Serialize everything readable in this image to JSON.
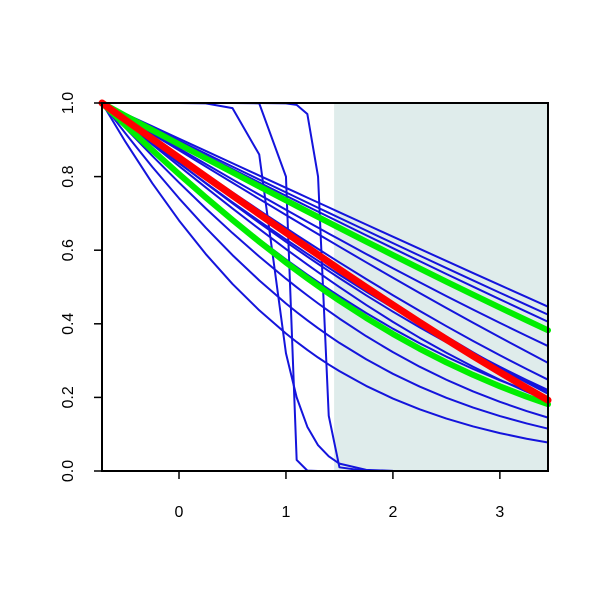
{
  "chart_data": {
    "type": "line",
    "title": "",
    "xlabel": "",
    "ylabel": "",
    "xlim": [
      -0.72,
      3.45
    ],
    "ylim": [
      0,
      1
    ],
    "x_ticks": [
      0,
      1,
      2,
      3
    ],
    "x_tick_labels": [
      "0",
      "1",
      "2",
      "3"
    ],
    "y_ticks": [
      0,
      0.2,
      0.4,
      0.6,
      0.8,
      1
    ],
    "y_tick_labels": [
      "0.0",
      "0.2",
      "0.4",
      "0.6",
      "0.8",
      "1.0"
    ],
    "grid": false,
    "legend": "none",
    "shaded_region": {
      "x_from": 1.45,
      "x_to": 3.45,
      "color": "#dfeceb"
    },
    "colors": {
      "blue": "#1414dc",
      "red": "#ff0000",
      "green": "#00ee00",
      "shade": "#dfeceb"
    },
    "x": [
      -0.72,
      -0.5,
      -0.25,
      0,
      0.25,
      0.5,
      0.75,
      1,
      1.1,
      1.2,
      1.3,
      1.4,
      1.5,
      1.75,
      2,
      2.25,
      2.5,
      2.75,
      3,
      3.25,
      3.45
    ],
    "series": [
      {
        "color": "blue",
        "width": 2,
        "values": [
          1,
          0.9474,
          0.8913,
          0.8364,
          0.7828,
          0.7303,
          0.6792,
          0.6293,
          0.6097,
          0.5903,
          0.5711,
          0.5521,
          0.5333,
          0.4875,
          0.4433,
          0.4007,
          0.3598,
          0.3206,
          0.2831,
          0.2473,
          0.22
        ]
      },
      {
        "color": "blue",
        "width": 2,
        "values": [
          1,
          0.9531,
          0.9015,
          0.85,
          0.7985,
          0.7474,
          0.6968,
          0.6469,
          0.6271,
          0.6074,
          0.5879,
          0.5685,
          0.5492,
          0.5017,
          0.4552,
          0.4098,
          0.3655,
          0.3225,
          0.2808,
          0.2404,
          0.21
        ]
      },
      {
        "color": "blue",
        "width": 2,
        "values": [
          1,
          0.96,
          0.9158,
          0.8715,
          0.8273,
          0.7832,
          0.7393,
          0.6957,
          0.6783,
          0.661,
          0.6438,
          0.6266,
          0.6095,
          0.5671,
          0.5252,
          0.4838,
          0.443,
          0.4029,
          0.3634,
          0.3246,
          0.2939
        ]
      },
      {
        "color": "blue",
        "width": 2,
        "values": [
          1,
          0.9614,
          0.9187,
          0.8763,
          0.8341,
          0.7923,
          0.7509,
          0.7099,
          0.6936,
          0.6774,
          0.6613,
          0.6452,
          0.6293,
          0.5898,
          0.551,
          0.5128,
          0.4753,
          0.4385,
          0.4025,
          0.3672,
          0.3395
        ]
      },
      {
        "color": "blue",
        "width": 2,
        "values": [
          1,
          0.9561,
          0.9063,
          0.8564,
          0.8067,
          0.7573,
          0.7084,
          0.6603,
          0.6412,
          0.6223,
          0.6036,
          0.5851,
          0.5667,
          0.5217,
          0.4777,
          0.435,
          0.3935,
          0.3533,
          0.3145,
          0.2771,
          0.2481
        ]
      },
      {
        "color": "blue",
        "width": 2,
        "values": [
          1,
          0.9497,
          0.8932,
          0.8371,
          0.7818,
          0.7275,
          0.6744,
          0.6228,
          0.6025,
          0.5825,
          0.5628,
          0.5433,
          0.5241,
          0.4775,
          0.4329,
          0.3904,
          0.35,
          0.3118,
          0.2758,
          0.242,
          0.2163
        ]
      },
      {
        "color": "blue",
        "width": 2,
        "values": [
          1,
          0.9552,
          0.904,
          0.8527,
          0.8014,
          0.7503,
          0.6995,
          0.6491,
          0.6291,
          0.6092,
          0.5894,
          0.5697,
          0.5501,
          0.5018,
          0.4543,
          0.4077,
          0.3621,
          0.3175,
          0.2741,
          0.2318,
          0.1991
        ]
      },
      {
        "color": "blue",
        "width": 2,
        "values": [
          1,
          0.9467,
          0.8874,
          0.8286,
          0.7706,
          0.7135,
          0.6577,
          0.6032,
          0.5819,
          0.5609,
          0.5402,
          0.5198,
          0.4998,
          0.4513,
          0.4053,
          0.3619,
          0.3212,
          0.2832,
          0.248,
          0.2155,
          0.1915
        ]
      },
      {
        "color": "blue",
        "width": 2,
        "values": [
          1,
          0.9386,
          0.8724,
          0.8082,
          0.7462,
          0.6866,
          0.6295,
          0.575,
          0.5541,
          0.5336,
          0.5136,
          0.494,
          0.4749,
          0.4293,
          0.3867,
          0.3472,
          0.3107,
          0.2772,
          0.2465,
          0.2185,
          0.198
        ]
      },
      {
        "color": "blue",
        "width": 2,
        "values": [
          1,
          0.9318,
          0.8565,
          0.7837,
          0.7136,
          0.6466,
          0.5828,
          0.5225,
          0.4995,
          0.4772,
          0.4555,
          0.4345,
          0.4141,
          0.3664,
          0.3229,
          0.2834,
          0.2479,
          0.2162,
          0.1879,
          0.163,
          0.145
        ]
      },
      {
        "color": "blue",
        "width": 2,
        "values": [
          1,
          0.9648,
          0.9261,
          0.8873,
          0.8487,
          0.8101,
          0.7718,
          0.7337,
          0.7186,
          0.7034,
          0.6884,
          0.6733,
          0.6584,
          0.6212,
          0.5844,
          0.548,
          0.512,
          0.4764,
          0.4414,
          0.4068,
          0.3795
        ]
      },
      {
        "color": "blue",
        "width": 2,
        "values": [
          1,
          0.968,
          0.9327,
          0.8974,
          0.8622,
          0.8271,
          0.792,
          0.7571,
          0.7432,
          0.7293,
          0.7154,
          0.7016,
          0.6878,
          0.6535,
          0.6192,
          0.5852,
          0.5514,
          0.5178,
          0.4844,
          0.4513,
          0.425
        ]
      },
      {
        "color": "blue",
        "width": 2,
        "values": [
          1,
          0.97,
          0.9366,
          0.9031,
          0.8697,
          0.8363,
          0.8029,
          0.7696,
          0.7562,
          0.7429,
          0.7296,
          0.7163,
          0.703,
          0.6698,
          0.6367,
          0.6037,
          0.5708,
          0.5379,
          0.5052,
          0.4726,
          0.4465
        ]
      },
      {
        "color": "blue",
        "width": 2,
        "values": [
          1,
          0.9666,
          0.9299,
          0.8932,
          0.8567,
          0.8203,
          0.784,
          0.7479,
          0.7335,
          0.7191,
          0.7048,
          0.6905,
          0.6762,
          0.6407,
          0.6054,
          0.5703,
          0.5354,
          0.5009,
          0.4666,
          0.4326,
          0.4056
        ]
      },
      {
        "color": "blue",
        "width": 2,
        "values": [
          1,
          0.917,
          0.8265,
          0.7411,
          0.6611,
          0.5867,
          0.5181,
          0.4552,
          0.4318,
          0.4094,
          0.388,
          0.3676,
          0.3481,
          0.3036,
          0.2641,
          0.2294,
          0.1989,
          0.1724,
          0.1493,
          0.1292,
          0.115
        ]
      },
      {
        "color": "blue",
        "width": 2,
        "values": [
          1,
          0.8941,
          0.7821,
          0.6808,
          0.5896,
          0.5084,
          0.4367,
          0.3737,
          0.3506,
          0.3289,
          0.3084,
          0.2893,
          0.2713,
          0.2312,
          0.1969,
          0.1675,
          0.1424,
          0.1211,
          0.103,
          0.0877,
          0.0775
        ]
      },
      {
        "color": "blue",
        "width": 2,
        "values": [
          1,
          1,
          1,
          0.9999,
          0.9991,
          0.986,
          0.86,
          0.32,
          0.2,
          0.12,
          0.07,
          0.04,
          0.02,
          0.003,
          0.0005,
          0.0001,
          0,
          0,
          0,
          0,
          0
        ]
      },
      {
        "color": "blue",
        "width": 2,
        "values": [
          1,
          1,
          1,
          1,
          1,
          1,
          0.999,
          0.8,
          0.03,
          0.001,
          0,
          0,
          0,
          0,
          0,
          0,
          0,
          0,
          0,
          0,
          0
        ]
      },
      {
        "color": "blue",
        "width": 2,
        "values": [
          1,
          1,
          1,
          1,
          1,
          1,
          1,
          0.999,
          0.995,
          0.97,
          0.8,
          0.15,
          0.01,
          0.0001,
          0,
          0,
          0,
          0,
          0,
          0,
          0
        ]
      },
      {
        "color": "green",
        "width": 6,
        "values": [
          1,
          0.939,
          0.872,
          0.8068,
          0.7434,
          0.6822,
          0.6233,
          0.5667,
          0.5449,
          0.5236,
          0.5029,
          0.4826,
          0.4629,
          0.416,
          0.3724,
          0.3321,
          0.295,
          0.2611,
          0.2301,
          0.2019,
          0.1815
        ]
      },
      {
        "color": "green",
        "width": 6,
        "values": [
          1,
          0.965,
          0.9265,
          0.888,
          0.8496,
          0.8114,
          0.7733,
          0.7354,
          0.7203,
          0.7053,
          0.6903,
          0.6754,
          0.6605,
          0.6235,
          0.5868,
          0.5505,
          0.5146,
          0.4791,
          0.4441,
          0.4096,
          0.3824
        ]
      },
      {
        "color": "red",
        "width": 7,
        "values": [
          1,
          0.9537,
          0.9025,
          0.8512,
          0.8,
          0.7489,
          0.6981,
          0.6476,
          0.6275,
          0.6075,
          0.5876,
          0.5678,
          0.548,
          0.4993,
          0.4512,
          0.404,
          0.3577,
          0.3125,
          0.2685,
          0.2257,
          0.1925
        ]
      }
    ]
  }
}
